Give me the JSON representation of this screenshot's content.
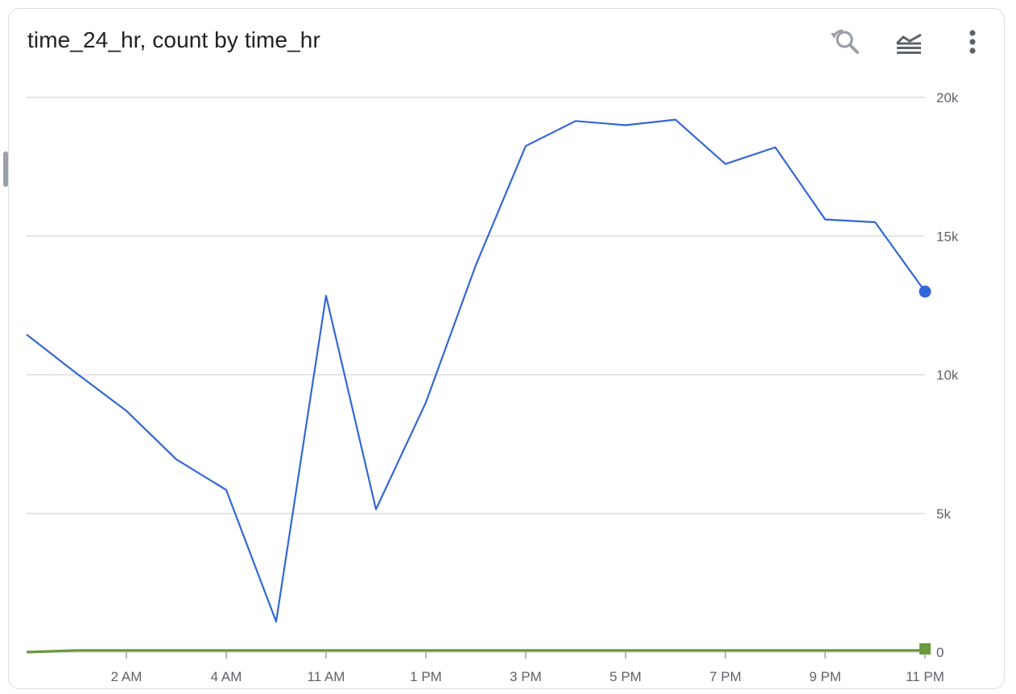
{
  "header": {
    "title": "time_24_hr, count by time_hr",
    "icons": [
      "zoom-reset-icon",
      "legend-toggle-icon",
      "more-vert-icon"
    ]
  },
  "colors": {
    "series_count": "#3367d6",
    "series_flat": "#6b9a3c",
    "grid": "#dadce0",
    "axis_text": "#5f6368"
  },
  "chart_data": {
    "type": "line",
    "title": "time_24_hr, count by time_hr",
    "x_ticks": [
      "2 AM",
      "4 AM",
      "11 AM",
      "1 PM",
      "3 PM",
      "5 PM",
      "7 PM",
      "9 PM",
      "11 PM"
    ],
    "x_tick_indices": [
      2,
      4,
      6,
      8,
      10,
      12,
      14,
      16,
      18
    ],
    "y_ticks": [
      "0",
      "5k",
      "10k",
      "15k",
      "20k"
    ],
    "y_tick_values": [
      0,
      5000,
      10000,
      15000,
      20000
    ],
    "ylim": [
      0,
      20000
    ],
    "y_axis_side": "right",
    "grid": true,
    "series": [
      {
        "color": "#3367d6",
        "marker": "circle-last",
        "values": [
          11450,
          10050,
          8700,
          6950,
          5850,
          1100,
          12850,
          5150,
          9000,
          13950,
          18250,
          19150,
          19000,
          19200,
          17600,
          18200,
          15600,
          15500,
          13000
        ]
      },
      {
        "color": "#6b9a3c",
        "marker": "square-last",
        "values": [
          0,
          60,
          60,
          60,
          60,
          60,
          60,
          60,
          60,
          60,
          60,
          60,
          60,
          60,
          60,
          60,
          60,
          60,
          60
        ]
      }
    ]
  }
}
